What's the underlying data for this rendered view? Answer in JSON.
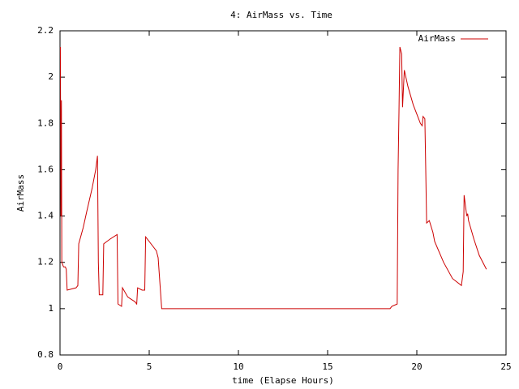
{
  "chart_data": {
    "type": "line",
    "title": "4: AirMass vs. Time",
    "xlabel": "time (Elapse Hours)",
    "ylabel": "AirMass",
    "xlim": [
      0,
      25
    ],
    "xticks": [
      0,
      5,
      10,
      15,
      20,
      25
    ],
    "ylim": [
      0.8,
      2.2
    ],
    "yticks": [
      0.8,
      1,
      1.2,
      1.4,
      1.6,
      1.8,
      2,
      2.2
    ],
    "legend": "upper right",
    "series": [
      {
        "name": "AirMass",
        "color": "#cc0000",
        "x": [
          0.02,
          0.05,
          0.08,
          0.1,
          0.2,
          0.3,
          0.35,
          0.4,
          0.9,
          1.0,
          1.05,
          1.3,
          1.5,
          1.8,
          2.0,
          2.1,
          2.15,
          2.2,
          2.4,
          2.45,
          2.8,
          3.2,
          3.25,
          3.45,
          3.5,
          3.8,
          4.2,
          4.3,
          4.35,
          4.6,
          4.75,
          4.8,
          5.0,
          5.4,
          5.5,
          5.7,
          18.5,
          18.6,
          18.9,
          18.95,
          19.0,
          19.05,
          19.15,
          19.2,
          19.3,
          19.5,
          19.8,
          20.0,
          20.2,
          20.3,
          20.35,
          20.45,
          20.5,
          20.55,
          20.7,
          20.9,
          21.0,
          21.5,
          22.0,
          22.5,
          22.6,
          22.65,
          22.8,
          22.85,
          22.9,
          23.2,
          23.5,
          23.9
        ],
        "values": [
          2.13,
          1.4,
          1.9,
          1.2,
          1.18,
          1.18,
          1.17,
          1.08,
          1.09,
          1.1,
          1.28,
          1.35,
          1.42,
          1.52,
          1.6,
          1.66,
          1.2,
          1.06,
          1.06,
          1.28,
          1.3,
          1.32,
          1.02,
          1.01,
          1.09,
          1.05,
          1.03,
          1.02,
          1.09,
          1.08,
          1.08,
          1.31,
          1.29,
          1.25,
          1.22,
          1.0,
          1.0,
          1.01,
          1.02,
          1.6,
          1.85,
          2.13,
          2.1,
          1.87,
          2.03,
          1.96,
          1.88,
          1.84,
          1.8,
          1.79,
          1.83,
          1.82,
          1.6,
          1.37,
          1.38,
          1.33,
          1.29,
          1.2,
          1.13,
          1.1,
          1.16,
          1.49,
          1.4,
          1.41,
          1.38,
          1.3,
          1.23,
          1.17
        ]
      }
    ]
  }
}
